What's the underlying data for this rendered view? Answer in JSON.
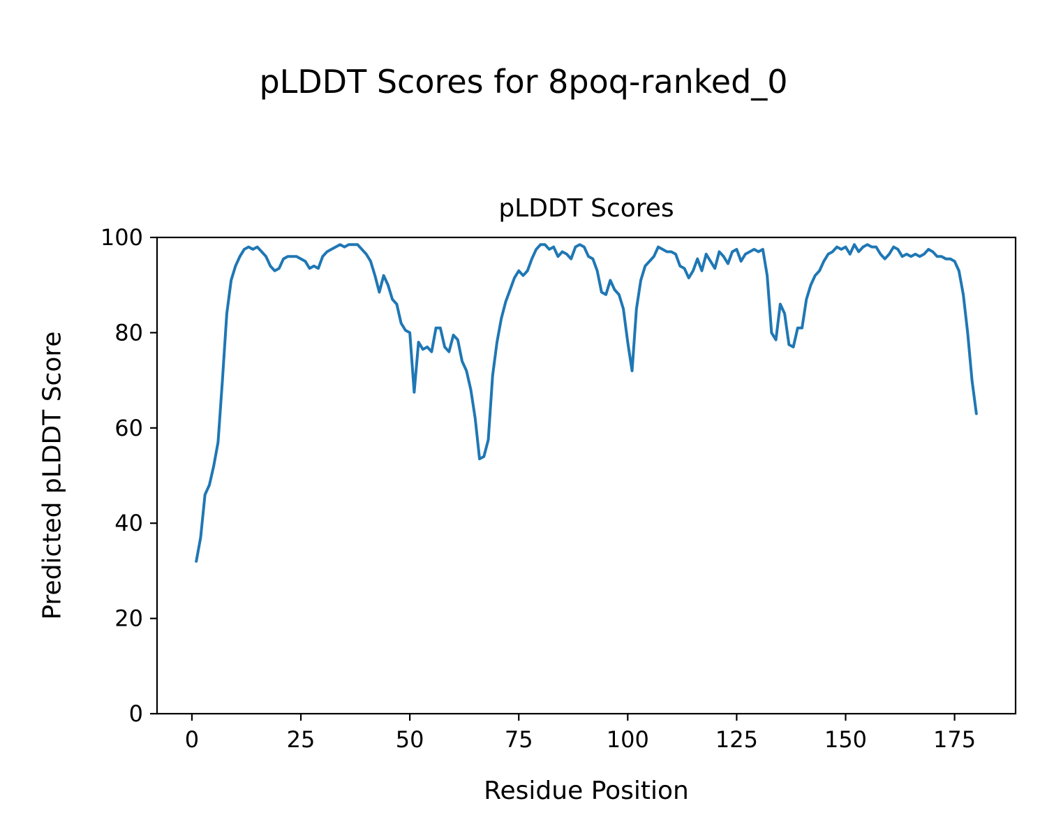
{
  "figure": {
    "suptitle": "pLDDT Scores for 8poq-ranked_0"
  },
  "chart_data": {
    "type": "line",
    "title": "pLDDT Scores",
    "xlabel": "Residue Position",
    "ylabel": "Predicted pLDDT Score",
    "xlim": [
      -8,
      189
    ],
    "ylim": [
      0,
      100
    ],
    "xticks": [
      0,
      25,
      50,
      75,
      100,
      125,
      150,
      175
    ],
    "yticks": [
      0,
      20,
      40,
      60,
      80,
      100
    ],
    "legend": "none",
    "grid": false,
    "line_color": "#1f77b4",
    "x_start": 1,
    "x_step": 1,
    "values": [
      32,
      37,
      46,
      48,
      52,
      57,
      70,
      84,
      91,
      94,
      96,
      97.5,
      98,
      97.5,
      98,
      97,
      96,
      94,
      93,
      93.5,
      95.5,
      96,
      96,
      96,
      95.5,
      95,
      93.5,
      94,
      93.5,
      96,
      97,
      97.5,
      98,
      98.5,
      98,
      98.5,
      98.5,
      98.5,
      97.5,
      96.5,
      95,
      92,
      88.5,
      92,
      90,
      87,
      86,
      82,
      80.5,
      80,
      67.5,
      78,
      76.5,
      77,
      76,
      81,
      81,
      77,
      76,
      79.5,
      78.5,
      74,
      72,
      68,
      62,
      53.5,
      54,
      57.5,
      71,
      78,
      83,
      86.5,
      89,
      91.5,
      93,
      92,
      93,
      95.5,
      97.5,
      98.5,
      98.5,
      97.5,
      98,
      96,
      97,
      96.5,
      95.5,
      98,
      98.5,
      98,
      96,
      95.5,
      93,
      88.5,
      88,
      91,
      89,
      88,
      85,
      78,
      72,
      85,
      91,
      94,
      95,
      96,
      98,
      97.5,
      97,
      97,
      96.5,
      94,
      93.5,
      91.5,
      93,
      95.5,
      93,
      96.5,
      95,
      93.5,
      97,
      96,
      94.5,
      97,
      97.5,
      95,
      96.5,
      97,
      97.5,
      97,
      97.5,
      92,
      80,
      78.5,
      86,
      84,
      77.5,
      77,
      81,
      81,
      87,
      90,
      92,
      93,
      95,
      96.5,
      97,
      98,
      97.5,
      98,
      96.5,
      98.5,
      97,
      98,
      98.5,
      98,
      98,
      96.5,
      95.5,
      96.5,
      98,
      97.5,
      96,
      96.5,
      96,
      96.5,
      96,
      96.5,
      97.5,
      97,
      96,
      96,
      95.5,
      95.5,
      95,
      93,
      88,
      80,
      70,
      63
    ]
  }
}
